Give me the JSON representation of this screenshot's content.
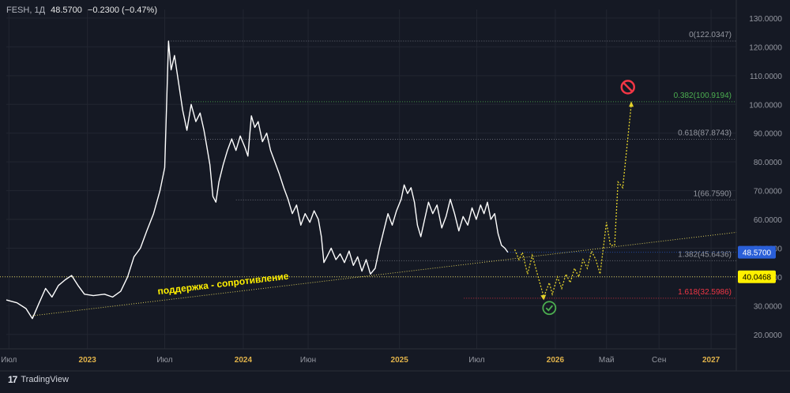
{
  "header": {
    "symbol": "FESH, 1Д",
    "last": "48.5700",
    "change": "−0.2300 (−0.47%)"
  },
  "brand": {
    "logo": "17",
    "name": "TradingView"
  },
  "colors": {
    "background": "#151924",
    "price_line": "#ffffff",
    "support_line": "#d6c95a",
    "forecast": "#e4d22b",
    "label_current_bg": "#2a5fd8",
    "label_support_bg": "#fff000",
    "fib_0382": "#4caf50",
    "fib_1618": "#f23645",
    "ok_icon": "#4caf50",
    "stop_icon": "#f23645"
  },
  "icons": {
    "ok": "check-circle-icon",
    "stop": "no-entry-icon"
  },
  "chart_data": {
    "type": "line",
    "symbol": "FESH",
    "timeframe": "1Д",
    "y_axis": {
      "min": 15,
      "max": 133,
      "ticks": [
        "130.0000",
        "120.0000",
        "110.0000",
        "100.0000",
        "90.0000",
        "80.0000",
        "70.0000",
        "60.0000",
        "50.0000",
        "40.0000",
        "30.0000",
        "20.0000"
      ],
      "tick_values": [
        130,
        120,
        110,
        100,
        90,
        80,
        70,
        60,
        50,
        40,
        30,
        20
      ]
    },
    "x_axis": {
      "range": [
        "2022-06-25",
        "2027-03-01"
      ],
      "ticks": [
        {
          "label": "Июл",
          "date": "2022-07-01",
          "bold": false
        },
        {
          "label": "2023",
          "date": "2023-01-01",
          "bold": true
        },
        {
          "label": "Июл",
          "date": "2023-07-01",
          "bold": false
        },
        {
          "label": "2024",
          "date": "2024-01-01",
          "bold": true
        },
        {
          "label": "Июн",
          "date": "2024-06-01",
          "bold": false
        },
        {
          "label": "2025",
          "date": "2025-01-01",
          "bold": true
        },
        {
          "label": "Июл",
          "date": "2025-07-01",
          "bold": false
        },
        {
          "label": "2026",
          "date": "2026-01-01",
          "bold": true
        },
        {
          "label": "Май",
          "date": "2026-05-01",
          "bold": false
        },
        {
          "label": "Сен",
          "date": "2026-09-01",
          "bold": false
        },
        {
          "label": "2027",
          "date": "2027-01-01",
          "bold": true
        }
      ]
    },
    "series": [
      {
        "values": [
          {
            "x": "2022-06-25",
            "y": 32
          },
          {
            "x": "2022-07-20",
            "y": 31
          },
          {
            "x": "2022-08-10",
            "y": 29
          },
          {
            "x": "2022-08-25",
            "y": 25.5
          },
          {
            "x": "2022-09-10",
            "y": 31
          },
          {
            "x": "2022-09-25",
            "y": 36
          },
          {
            "x": "2022-10-10",
            "y": 33
          },
          {
            "x": "2022-10-25",
            "y": 37
          },
          {
            "x": "2022-11-10",
            "y": 39
          },
          {
            "x": "2022-11-25",
            "y": 40.5
          },
          {
            "x": "2022-12-10",
            "y": 37
          },
          {
            "x": "2022-12-25",
            "y": 34
          },
          {
            "x": "2023-01-15",
            "y": 33.5
          },
          {
            "x": "2023-02-10",
            "y": 34
          },
          {
            "x": "2023-03-01",
            "y": 33
          },
          {
            "x": "2023-03-20",
            "y": 35
          },
          {
            "x": "2023-04-05",
            "y": 40
          },
          {
            "x": "2023-04-20",
            "y": 47
          },
          {
            "x": "2023-05-05",
            "y": 50
          },
          {
            "x": "2023-05-20",
            "y": 56
          },
          {
            "x": "2023-06-05",
            "y": 62
          },
          {
            "x": "2023-06-20",
            "y": 70
          },
          {
            "x": "2023-07-01",
            "y": 78
          },
          {
            "x": "2023-07-10",
            "y": 122
          },
          {
            "x": "2023-07-16",
            "y": 112
          },
          {
            "x": "2023-07-24",
            "y": 117
          },
          {
            "x": "2023-08-02",
            "y": 108
          },
          {
            "x": "2023-08-12",
            "y": 98
          },
          {
            "x": "2023-08-22",
            "y": 91
          },
          {
            "x": "2023-09-01",
            "y": 100
          },
          {
            "x": "2023-09-12",
            "y": 94
          },
          {
            "x": "2023-09-22",
            "y": 97
          },
          {
            "x": "2023-10-01",
            "y": 91
          },
          {
            "x": "2023-10-08",
            "y": 85
          },
          {
            "x": "2023-10-15",
            "y": 79
          },
          {
            "x": "2023-10-22",
            "y": 68
          },
          {
            "x": "2023-10-29",
            "y": 66
          },
          {
            "x": "2023-11-05",
            "y": 73
          },
          {
            "x": "2023-11-15",
            "y": 79
          },
          {
            "x": "2023-11-25",
            "y": 84
          },
          {
            "x": "2023-12-05",
            "y": 88
          },
          {
            "x": "2023-12-15",
            "y": 84
          },
          {
            "x": "2023-12-25",
            "y": 89
          },
          {
            "x": "2024-01-05",
            "y": 85
          },
          {
            "x": "2024-01-12",
            "y": 82
          },
          {
            "x": "2024-01-20",
            "y": 96
          },
          {
            "x": "2024-01-28",
            "y": 92
          },
          {
            "x": "2024-02-05",
            "y": 94
          },
          {
            "x": "2024-02-15",
            "y": 87
          },
          {
            "x": "2024-02-25",
            "y": 90
          },
          {
            "x": "2024-03-05",
            "y": 84
          },
          {
            "x": "2024-03-15",
            "y": 80
          },
          {
            "x": "2024-03-25",
            "y": 76
          },
          {
            "x": "2024-04-05",
            "y": 71
          },
          {
            "x": "2024-04-15",
            "y": 67
          },
          {
            "x": "2024-04-25",
            "y": 62
          },
          {
            "x": "2024-05-05",
            "y": 65
          },
          {
            "x": "2024-05-15",
            "y": 58
          },
          {
            "x": "2024-05-25",
            "y": 62
          },
          {
            "x": "2024-06-05",
            "y": 59
          },
          {
            "x": "2024-06-15",
            "y": 63
          },
          {
            "x": "2024-06-25",
            "y": 60
          },
          {
            "x": "2024-07-02",
            "y": 54
          },
          {
            "x": "2024-07-08",
            "y": 45
          },
          {
            "x": "2024-07-15",
            "y": 47
          },
          {
            "x": "2024-07-25",
            "y": 50
          },
          {
            "x": "2024-08-05",
            "y": 46
          },
          {
            "x": "2024-08-15",
            "y": 48
          },
          {
            "x": "2024-08-25",
            "y": 45
          },
          {
            "x": "2024-09-05",
            "y": 49
          },
          {
            "x": "2024-09-15",
            "y": 44
          },
          {
            "x": "2024-09-25",
            "y": 47
          },
          {
            "x": "2024-10-05",
            "y": 42
          },
          {
            "x": "2024-10-15",
            "y": 46
          },
          {
            "x": "2024-10-25",
            "y": 41
          },
          {
            "x": "2024-11-05",
            "y": 43
          },
          {
            "x": "2024-11-15",
            "y": 50
          },
          {
            "x": "2024-11-25",
            "y": 56
          },
          {
            "x": "2024-12-05",
            "y": 62
          },
          {
            "x": "2024-12-15",
            "y": 58
          },
          {
            "x": "2024-12-25",
            "y": 63
          },
          {
            "x": "2025-01-05",
            "y": 67
          },
          {
            "x": "2025-01-12",
            "y": 72
          },
          {
            "x": "2025-01-20",
            "y": 69
          },
          {
            "x": "2025-01-28",
            "y": 71
          },
          {
            "x": "2025-02-05",
            "y": 66
          },
          {
            "x": "2025-02-12",
            "y": 58
          },
          {
            "x": "2025-02-20",
            "y": 54
          },
          {
            "x": "2025-03-01",
            "y": 60
          },
          {
            "x": "2025-03-10",
            "y": 66
          },
          {
            "x": "2025-03-20",
            "y": 62
          },
          {
            "x": "2025-03-30",
            "y": 65
          },
          {
            "x": "2025-04-10",
            "y": 57
          },
          {
            "x": "2025-04-20",
            "y": 61
          },
          {
            "x": "2025-04-30",
            "y": 67
          },
          {
            "x": "2025-05-10",
            "y": 62
          },
          {
            "x": "2025-05-20",
            "y": 56
          },
          {
            "x": "2025-05-30",
            "y": 61
          },
          {
            "x": "2025-06-10",
            "y": 58
          },
          {
            "x": "2025-06-20",
            "y": 64
          },
          {
            "x": "2025-06-30",
            "y": 60
          },
          {
            "x": "2025-07-10",
            "y": 65
          },
          {
            "x": "2025-07-18",
            "y": 62
          },
          {
            "x": "2025-07-26",
            "y": 66
          },
          {
            "x": "2025-08-03",
            "y": 60
          },
          {
            "x": "2025-08-12",
            "y": 62
          },
          {
            "x": "2025-08-20",
            "y": 55
          },
          {
            "x": "2025-08-28",
            "y": 51
          },
          {
            "x": "2025-09-05",
            "y": 50
          },
          {
            "x": "2025-09-12",
            "y": 48.57
          }
        ]
      }
    ],
    "forecast": [
      {
        "x": "2025-09-28",
        "y": 49.5
      },
      {
        "x": "2025-10-08",
        "y": 46
      },
      {
        "x": "2025-10-16",
        "y": 48.5
      },
      {
        "x": "2025-10-28",
        "y": 41
      },
      {
        "x": "2025-11-08",
        "y": 47.5
      },
      {
        "x": "2025-12-05",
        "y": 33
      },
      {
        "x": "2025-12-18",
        "y": 38
      },
      {
        "x": "2025-12-25",
        "y": 34
      },
      {
        "x": "2026-01-06",
        "y": 40
      },
      {
        "x": "2026-01-16",
        "y": 36
      },
      {
        "x": "2026-01-26",
        "y": 41
      },
      {
        "x": "2026-02-05",
        "y": 38
      },
      {
        "x": "2026-02-15",
        "y": 43
      },
      {
        "x": "2026-02-25",
        "y": 40
      },
      {
        "x": "2026-03-07",
        "y": 46
      },
      {
        "x": "2026-03-17",
        "y": 43
      },
      {
        "x": "2026-03-27",
        "y": 49
      },
      {
        "x": "2026-04-06",
        "y": 46
      },
      {
        "x": "2026-04-16",
        "y": 41
      },
      {
        "x": "2026-05-01",
        "y": 59
      },
      {
        "x": "2026-05-10",
        "y": 51
      },
      {
        "x": "2026-05-20",
        "y": 51
      },
      {
        "x": "2026-05-28",
        "y": 73
      },
      {
        "x": "2026-06-08",
        "y": 71
      },
      {
        "x": "2026-06-28",
        "y": 100
      }
    ],
    "support_line": {
      "from": {
        "x": "2022-08-25",
        "y": 26.5
      },
      "to": {
        "x": "2027-03-01",
        "y": 55.5
      },
      "label": "поддержка - сопротивление"
    },
    "horizontal_line": {
      "y": 40.0468,
      "label": "40.0468"
    },
    "current_price": {
      "y": 48.57,
      "label": "48.5700"
    },
    "fib_levels": [
      {
        "label": "0(122.0347)",
        "y": 122.0347,
        "start": "2023-07-10"
      },
      {
        "label": "0.382(100.9194)",
        "y": 100.9194,
        "start": "2023-09-01"
      },
      {
        "label": "0.618(87.8743)",
        "y": 87.8743,
        "start": "2023-09-01"
      },
      {
        "label": "1(66.7590)",
        "y": 66.759,
        "start": "2023-12-15"
      },
      {
        "label": "1.382(45.6436)",
        "y": 45.6436,
        "start": "2024-09-05"
      },
      {
        "label": "1.618(32.5986)",
        "y": 32.5986,
        "start": "2025-06-01"
      }
    ],
    "annotations": [
      {
        "icon": "check-circle-icon",
        "x": "2025-12-18",
        "y": 29.2
      },
      {
        "icon": "no-entry-icon",
        "x": "2026-06-20",
        "y": 106
      }
    ]
  }
}
